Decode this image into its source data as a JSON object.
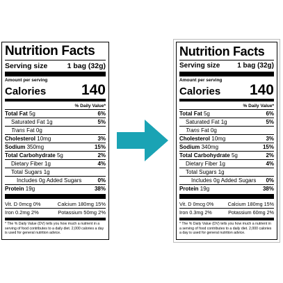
{
  "labels": [
    {
      "title": "Nutrition Facts",
      "serving_size_label": "Serving size",
      "serving_size_value": "1 bag (32g)",
      "amount_per_serving": "Amount per serving",
      "calories_label": "Calories",
      "calories_value": "140",
      "dv_header": "% Daily Value*",
      "rows": [
        {
          "name": "Total Fat",
          "amount": "5g",
          "dv": "6%"
        },
        {
          "name": "Saturated Fat",
          "amount": "1g",
          "dv": "5%"
        },
        {
          "name": "Trans",
          "suffix": "Fat 0g",
          "amount": "",
          "dv": ""
        },
        {
          "name": "Cholesterol",
          "amount": "10mg",
          "dv": "3%"
        },
        {
          "name": "Sodium",
          "amount": "350mg",
          "dv": "15%"
        },
        {
          "name": "Total Carbohydrate",
          "amount": "5g",
          "dv": "2%"
        },
        {
          "name": "Dietary Fiber",
          "amount": "1g",
          "dv": "4%"
        },
        {
          "name": "Total Sugars",
          "amount": "1g",
          "dv": ""
        },
        {
          "name": "Includes 0g Added Sugars",
          "amount": "",
          "dv": "0%"
        },
        {
          "name": "Protein",
          "amount": "19g",
          "dv": "38%"
        }
      ],
      "minerals": [
        {
          "left": "Vit. D 0mcg 0%",
          "right": "Calcium 180mg 15%"
        },
        {
          "left": "Iron 0.2mg 2%",
          "right": "Potassium 50mg 2%"
        }
      ],
      "footnote": "* The % Daily Value (DV) tells you how much a nutrient in a serving of food contributes to a daily diet. 2,000 calories a day is used for general nutrition advice."
    },
    {
      "title": "Nutrition Facts",
      "serving_size_label": "Serving size",
      "serving_size_value": "1 bag (32g)",
      "amount_per_serving": "Amount per serving",
      "calories_label": "Calories",
      "calories_value": "140",
      "dv_header": "% Daily Value*",
      "rows": [
        {
          "name": "Total Fat",
          "amount": "5g",
          "dv": "6%"
        },
        {
          "name": "Saturated Fat",
          "amount": "1g",
          "dv": "5%"
        },
        {
          "name": "Trans",
          "suffix": "Fat 0g",
          "amount": "",
          "dv": ""
        },
        {
          "name": "Cholesterol",
          "amount": "10mg",
          "dv": "3%"
        },
        {
          "name": "Sodium",
          "amount": "340mg",
          "dv": "15%"
        },
        {
          "name": "Total Carbohydrate",
          "amount": "5g",
          "dv": "2%"
        },
        {
          "name": "Dietary Fiber",
          "amount": "1g",
          "dv": "4%"
        },
        {
          "name": "Total Sugars",
          "amount": "1g",
          "dv": ""
        },
        {
          "name": "Includes 0g Added Sugars",
          "amount": "",
          "dv": "0%"
        },
        {
          "name": "Protein",
          "amount": "19g",
          "dv": "38%"
        }
      ],
      "minerals": [
        {
          "left": "Vit. D 0mcg 0%",
          "right": "Calcium 180mg 15%"
        },
        {
          "left": "Iron 0.3mg 2%",
          "right": "Potassium 60mg 2%"
        }
      ],
      "footnote": "* The % Daily Value (DV) tells you how much a nutrient in a serving of food contributes to a daily diet. 2,000 calories a day is used for general nutrition advice."
    }
  ],
  "arrow": {
    "color": "#1aa3b4",
    "icon": "arrow-right-icon"
  }
}
